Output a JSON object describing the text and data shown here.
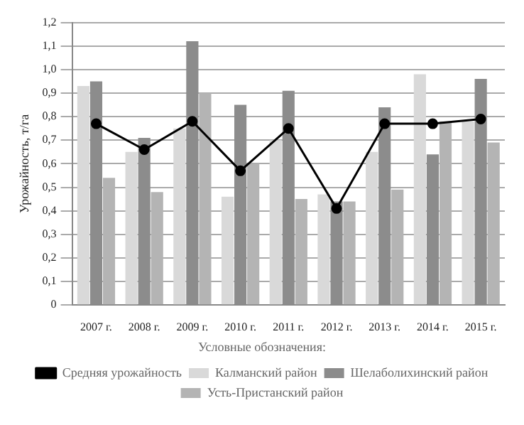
{
  "chart_data": {
    "type": "bar",
    "ylabel": "Урожайность, т/га",
    "legend_title": "Условные обозначения:",
    "categories": [
      "2007 г.",
      "2008 г.",
      "2009 г.",
      "2010 г.",
      "2011 г.",
      "2012 г.",
      "2013 г.",
      "2014 г.",
      "2015 г."
    ],
    "series": [
      {
        "name": "Калманский район",
        "color": "#d9d9d9",
        "values": [
          0.93,
          0.65,
          0.75,
          0.46,
          0.7,
          0.47,
          0.65,
          0.98,
          0.78
        ]
      },
      {
        "name": "Шелаболихинский район",
        "color": "#8c8c8c",
        "values": [
          0.95,
          0.71,
          1.12,
          0.85,
          0.91,
          0.44,
          0.84,
          0.64,
          0.96
        ]
      },
      {
        "name": "Усть-Пристанский район",
        "color": "#b4b4b4",
        "values": [
          0.54,
          0.48,
          0.9,
          0.6,
          0.45,
          0.44,
          0.49,
          0.78,
          0.69
        ]
      },
      {
        "name": "Средняя урожайность",
        "type": "line",
        "color": "#000000",
        "marker": "circle",
        "values": [
          0.77,
          0.66,
          0.78,
          0.57,
          0.75,
          0.41,
          0.77,
          0.77,
          0.79
        ]
      }
    ],
    "ylim": [
      0,
      1.2
    ],
    "yticks": [
      {
        "value": 0,
        "label": "0"
      },
      {
        "value": 0.1,
        "label": "0,1"
      },
      {
        "value": 0.2,
        "label": "0,2"
      },
      {
        "value": 0.3,
        "label": "0,3"
      },
      {
        "value": 0.4,
        "label": "0,4"
      },
      {
        "value": 0.5,
        "label": "0,5"
      },
      {
        "value": 0.6,
        "label": "0,6"
      },
      {
        "value": 0.7,
        "label": "0,7"
      },
      {
        "value": 0.8,
        "label": "0,8"
      },
      {
        "value": 0.9,
        "label": "0,9"
      },
      {
        "value": 1,
        "label": "1,0"
      },
      {
        "value": 1.1,
        "label": "1,1"
      },
      {
        "value": 1.2,
        "label": "1,2"
      }
    ],
    "grid": "y",
    "legend": "bottom"
  }
}
